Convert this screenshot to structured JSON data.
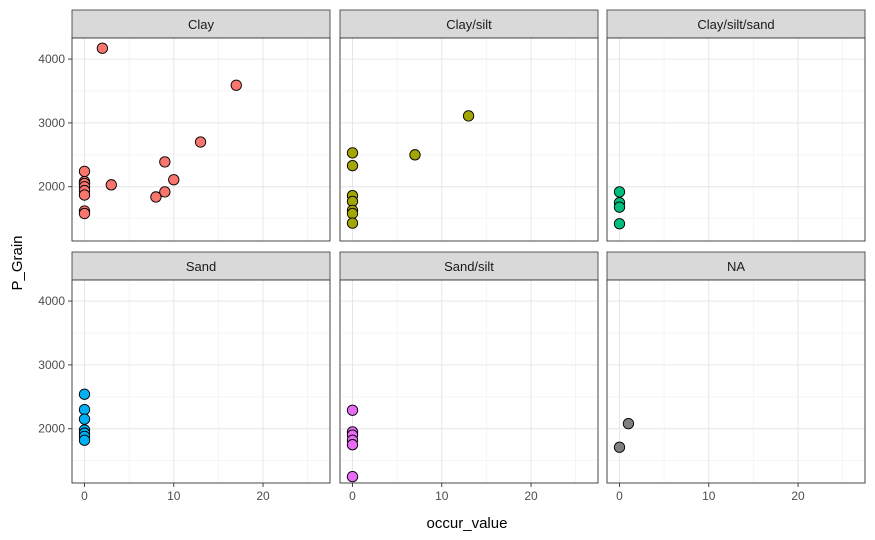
{
  "chart_data": {
    "type": "scatter",
    "xlabel": "occur_value",
    "ylabel": "P_Grain",
    "xlim": [
      -1.4,
      27.5
    ],
    "ylim": [
      1150,
      4330
    ],
    "x_ticks": [
      0,
      10,
      20
    ],
    "y_ticks": [
      2000,
      3000,
      4000
    ],
    "grid": true,
    "facet_layout": {
      "rows": 2,
      "cols": 3
    },
    "panels": [
      {
        "name": "Clay",
        "color": "#F8766D",
        "points": [
          {
            "x": 0,
            "y": 2240
          },
          {
            "x": 0,
            "y": 2080
          },
          {
            "x": 0,
            "y": 2050
          },
          {
            "x": 0,
            "y": 2000
          },
          {
            "x": 0,
            "y": 1940
          },
          {
            "x": 0,
            "y": 1870
          },
          {
            "x": 0,
            "y": 1620
          },
          {
            "x": 0,
            "y": 1580
          },
          {
            "x": 2,
            "y": 4170
          },
          {
            "x": 3,
            "y": 2030
          },
          {
            "x": 8,
            "y": 1840
          },
          {
            "x": 9,
            "y": 1920
          },
          {
            "x": 9,
            "y": 2390
          },
          {
            "x": 10,
            "y": 2110
          },
          {
            "x": 13,
            "y": 2700
          },
          {
            "x": 17,
            "y": 3590
          }
        ]
      },
      {
        "name": "Clay/silt",
        "color": "#A3A500",
        "points": [
          {
            "x": 0,
            "y": 2530
          },
          {
            "x": 0,
            "y": 2330
          },
          {
            "x": 0,
            "y": 1860
          },
          {
            "x": 0,
            "y": 1770
          },
          {
            "x": 0,
            "y": 1630
          },
          {
            "x": 0,
            "y": 1580
          },
          {
            "x": 0,
            "y": 1430
          },
          {
            "x": 7,
            "y": 2500
          },
          {
            "x": 13,
            "y": 3110
          }
        ]
      },
      {
        "name": "Clay/silt/sand",
        "color": "#00BF7D",
        "points": [
          {
            "x": 0,
            "y": 1920
          },
          {
            "x": 0,
            "y": 1750
          },
          {
            "x": 0,
            "y": 1680
          },
          {
            "x": 0,
            "y": 1420
          }
        ]
      },
      {
        "name": "Sand",
        "color": "#00B0F6",
        "points": [
          {
            "x": 0,
            "y": 2540
          },
          {
            "x": 0,
            "y": 2300
          },
          {
            "x": 0,
            "y": 2150
          },
          {
            "x": 0,
            "y": 1980
          },
          {
            "x": 0,
            "y": 1930
          },
          {
            "x": 0,
            "y": 1880
          },
          {
            "x": 0,
            "y": 1820
          }
        ]
      },
      {
        "name": "Sand/silt",
        "color": "#E76BF3",
        "points": [
          {
            "x": 0,
            "y": 2290
          },
          {
            "x": 0,
            "y": 1950
          },
          {
            "x": 0,
            "y": 1900
          },
          {
            "x": 0,
            "y": 1820
          },
          {
            "x": 0,
            "y": 1750
          },
          {
            "x": 0,
            "y": 1250
          }
        ]
      },
      {
        "name": "NA",
        "color": "#7F7F7F",
        "points": [
          {
            "x": 0,
            "y": 1710
          },
          {
            "x": 1,
            "y": 2080
          }
        ]
      }
    ]
  }
}
